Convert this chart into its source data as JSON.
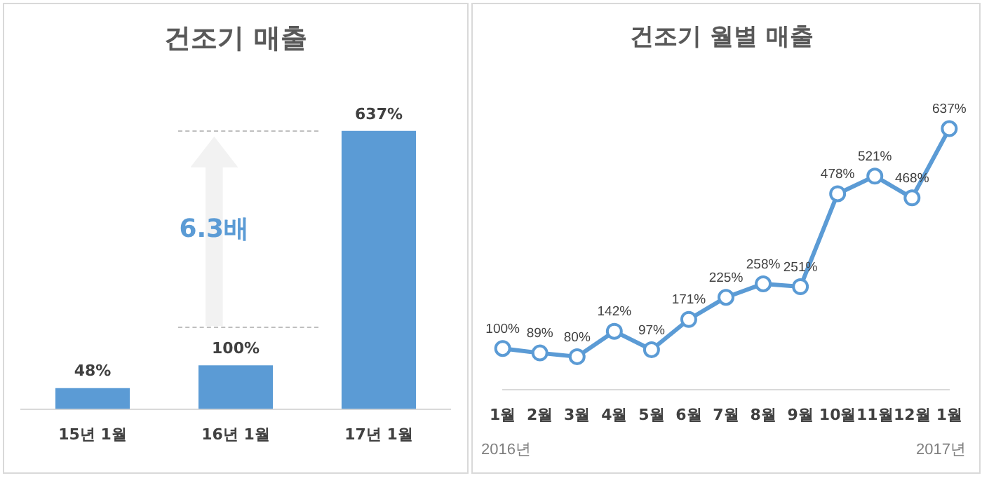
{
  "chart_data": [
    {
      "type": "bar",
      "title": "건조기 매출",
      "categories": [
        "15년 1월",
        "16년 1월",
        "17년 1월"
      ],
      "values": [
        48,
        100,
        637
      ],
      "value_labels": [
        "48%",
        "100%",
        "637%"
      ],
      "color": "#5b9bd5",
      "grid": false,
      "legend": false,
      "tick_labels": "x",
      "annotations": [
        "6.3배"
      ]
    },
    {
      "type": "line",
      "title": "건조기 월별 매출",
      "categories": [
        "1월",
        "2월",
        "3월",
        "4월",
        "5월",
        "6월",
        "7월",
        "8월",
        "9월",
        "10월",
        "11월",
        "12월",
        "1월"
      ],
      "values": [
        100,
        89,
        80,
        142,
        97,
        171,
        225,
        258,
        251,
        478,
        521,
        468,
        637
      ],
      "value_labels": [
        "100%",
        "89%",
        "80%",
        "142%",
        "97%",
        "171%",
        "225%",
        "258%",
        "251%",
        "478%",
        "521%",
        "468%",
        "637%"
      ],
      "color": "#5b9bd5",
      "marker": "circle",
      "line_style": "solid",
      "grid": false,
      "legend": false,
      "tick_labels": "x",
      "annotations": [
        "2016년",
        "2017년"
      ]
    }
  ]
}
